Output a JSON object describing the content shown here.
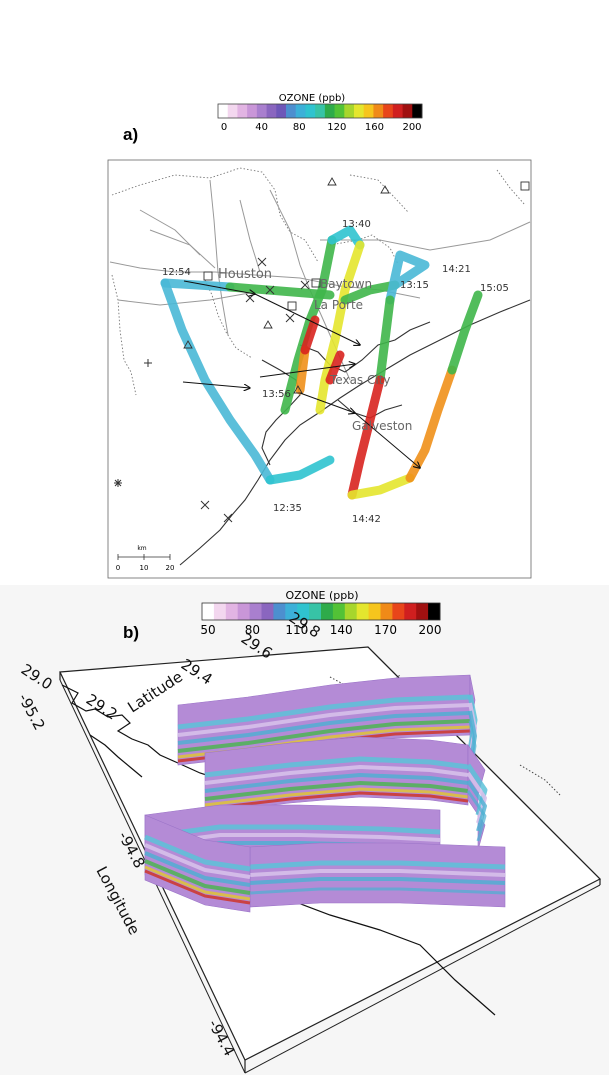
{
  "panel_a": {
    "label": "a)",
    "colorbar": {
      "title": "OZONE (ppb)",
      "ticks": [
        "0",
        "40",
        "80",
        "120",
        "160",
        "200"
      ],
      "colors": [
        "#ffffff",
        "#f3d7ef",
        "#e2b4e3",
        "#c996d8",
        "#a97fce",
        "#8a66bf",
        "#6e57b8",
        "#4d8fcf",
        "#3cb0d8",
        "#2fc3cf",
        "#37c3a6",
        "#2eab4a",
        "#52c236",
        "#a7d62c",
        "#e4e62e",
        "#f6c51d",
        "#f08a18",
        "#e8451a",
        "#d01f1f",
        "#a01010",
        "#000000"
      ]
    },
    "cities": [
      "Houston",
      "Baytown",
      "La Porte",
      "Texas City",
      "Galveston"
    ],
    "times": [
      "12:54",
      "13:40",
      "14:21",
      "13:15",
      "15:05",
      "13:56",
      "12:35",
      "14:42"
    ],
    "scale": {
      "unit": "km",
      "ticks": [
        "0",
        "10",
        "20"
      ]
    }
  },
  "panel_b": {
    "label": "b)",
    "colorbar": {
      "title": "OZONE (ppb)",
      "ticks": [
        "50",
        "80",
        "110",
        "140",
        "170",
        "200"
      ],
      "colors": [
        "#ffffff",
        "#f3d7ef",
        "#e2b4e3",
        "#c996d8",
        "#a97fce",
        "#8a66bf",
        "#4d8fcf",
        "#3cb0d8",
        "#2fc3cf",
        "#37c3a6",
        "#2eab4a",
        "#52c236",
        "#a7d62c",
        "#e4e62e",
        "#f6c51d",
        "#f08a18",
        "#e8451a",
        "#d01f1f",
        "#a01010",
        "#000000"
      ]
    },
    "latitude_label": "Latitude",
    "latitude_ticks": [
      "29.0",
      "29.2",
      "29.4",
      "29.6",
      "29.8"
    ],
    "longitude_label": "Longitude",
    "longitude_ticks": [
      "-95.2",
      "-94.8",
      "-94.4"
    ]
  }
}
